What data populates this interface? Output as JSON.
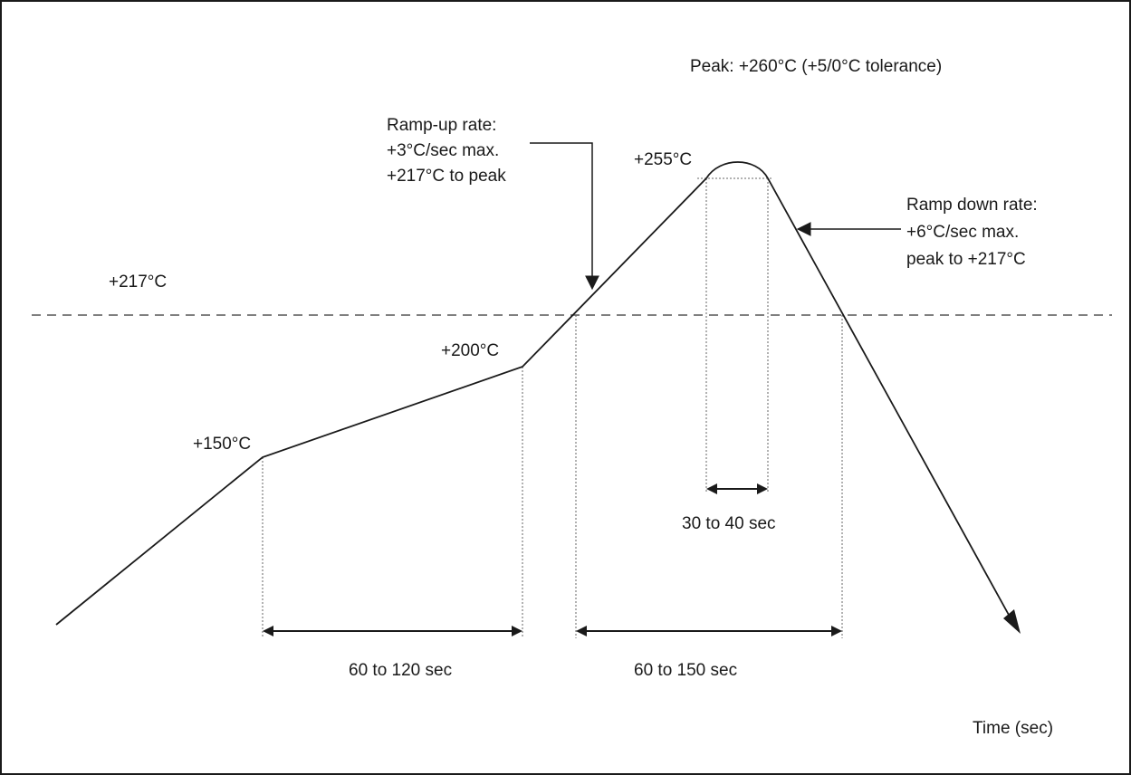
{
  "diagram": {
    "peak_note": "Peak: +260°C (+5/0°C tolerance)",
    "ramp_up": {
      "line1": "Ramp-up rate:",
      "line2": "+3°C/sec max.",
      "line3": "+217°C to peak"
    },
    "ramp_down": {
      "line1": "Ramp down rate:",
      "line2": "+6°C/sec max.",
      "line3": "peak to +217°C"
    },
    "temps": {
      "t255": "+255°C",
      "t217": "+217°C",
      "t200": "+200°C",
      "t150": "+150°C"
    },
    "durations": {
      "preheat": "60 to 120 sec",
      "above_liquidus": "60 to 150 sec",
      "near_peak": "30 to 40 sec"
    },
    "x_axis_label": "Time (sec)"
  }
}
